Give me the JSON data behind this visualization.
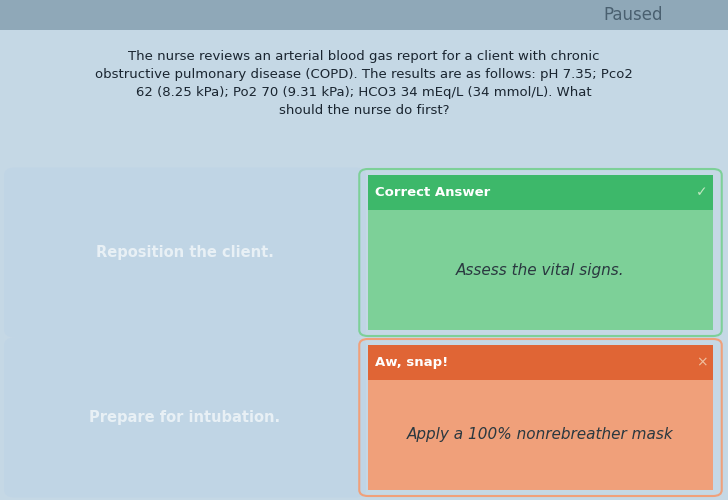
{
  "title": "Paused",
  "question_line1": "The nurse reviews an arterial blood gas report for a client with chronic",
  "question_line2": "obstructive pulmonary disease (COPD). The results are as follows: pH 7.35; Pco2",
  "question_line3": "62 (8.25 kPa); Po2 70 (9.31 kPa); HCO3 34 mEq/L (34 mmol/L). What",
  "question_line4": "should the nurse do first?",
  "bg_color": "#c5d8e5",
  "top_bar_color": "#8fa8b8",
  "card_blue_color": "#c0d5e5",
  "card_blue_lighter": "#d0e2ef",
  "card_green_header_color": "#3db86a",
  "card_green_body_color": "#7dd098",
  "card_orange_header_color": "#e06535",
  "card_orange_body_color": "#f0a07a",
  "answer_wrong_left_top": "Reposition the client.",
  "answer_correct_header": "Correct Answer",
  "answer_correct_body": "Assess the vital signs.",
  "answer_wrong_left_bottom": "Prepare for intubation.",
  "answer_wrong_header": "Aw, snap!",
  "answer_wrong_body": "Apply a 100% nonrebreather mask",
  "title_color": "#4a6070",
  "question_color": "#1a2530",
  "card_text_white": "#e8f0f5",
  "card_text_dark": "#2a3840",
  "header_text_color": "#ffffff",
  "checkmark_color": "#c0e8c0",
  "x_color": "#f0c0a0"
}
